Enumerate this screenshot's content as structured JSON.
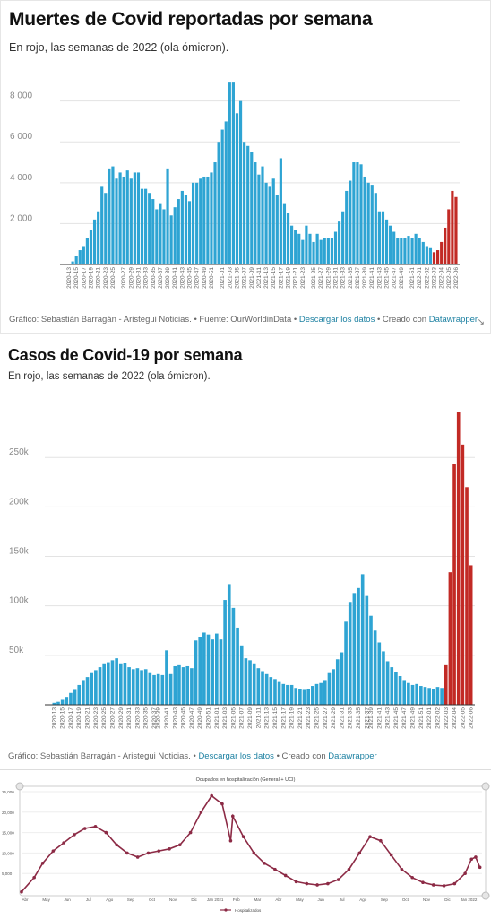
{
  "chart1": {
    "title": "Muertes de Covid reportadas por semana",
    "subtitle": "En rojo, las semanas de 2022 (ola ómicron).",
    "footer": {
      "credit": "Gráfico: Sebastián Barragán - Aristegui Noticias.",
      "source": "• Fuente: OurWorldinData •",
      "download": "Descargar los datos",
      "created": "• Creado con",
      "tool": "Datawrapper"
    }
  },
  "chart2": {
    "title": "Casos de Covid-19 por semana",
    "subtitle": "En rojo, las semanas de 2022 (ola ómicron).",
    "footer": {
      "credit": "Gráfico: Sebastián Barragán - Aristegui Noticias. •",
      "download": "Descargar los datos",
      "created": "• Creado con",
      "tool": "Datawrapper"
    }
  },
  "chart3": {
    "title": "Ocupados en hospitalización (General + UCI)",
    "legend": "Hospitalizados"
  },
  "colors": {
    "blue": "#2ea4d3",
    "red": "#c22a25",
    "maroon": "#8c2a45"
  },
  "chart_data": [
    {
      "type": "bar",
      "title": "Muertes de Covid reportadas por semana",
      "subtitle": "En rojo, las semanas de 2022 (ola ómicron).",
      "yticks": [
        2000,
        4000,
        6000,
        8000
      ],
      "ytick_labels": [
        "2 000",
        "4 000",
        "6 000",
        "8 000"
      ],
      "ylim": [
        0,
        9300
      ],
      "grid": true,
      "highlight_last": 7,
      "values": [
        40,
        150,
        400,
        700,
        900,
        1300,
        1700,
        2200,
        2600,
        3800,
        3500,
        4700,
        4800,
        4200,
        4500,
        4300,
        4600,
        4200,
        4500,
        4500,
        3700,
        3700,
        3500,
        3200,
        2700,
        3000,
        2700,
        4700,
        2400,
        2800,
        3200,
        3600,
        3400,
        3100,
        4000,
        4000,
        4200,
        4300,
        4300,
        4500,
        5000,
        6000,
        6600,
        7000,
        8900,
        8900,
        7400,
        8000,
        6000,
        5800,
        5500,
        5000,
        4400,
        4800,
        4000,
        3800,
        4200,
        3400,
        5200,
        3000,
        2500,
        1900,
        1700,
        1500,
        1200,
        1900,
        1500,
        1100,
        1500,
        1200,
        1300,
        1300,
        1300,
        1600,
        2100,
        2600,
        3600,
        4100,
        5000,
        5000,
        4900,
        4300,
        4000,
        3900,
        3500,
        2600,
        2600,
        2200,
        1900,
        1600,
        1300,
        1300,
        1300,
        1400,
        1300,
        1500,
        1300,
        1100,
        900,
        800,
        600,
        700,
        1100,
        1800,
        2700,
        3600,
        3300
      ],
      "xtick_labels": [
        "2020-13",
        "2020-15",
        "2020-17",
        "2020-19",
        "2020-21",
        "2020-23",
        "2020-25",
        "2020-27",
        "2020-29",
        "2020-31",
        "2020-33",
        "2020-35",
        "2020-37",
        "2020-39",
        "2020-41",
        "2020-43",
        "2020-45",
        "2020-47",
        "2020-49",
        "2020-51",
        "2021-01",
        "2021-03",
        "2021-05",
        "2021-07",
        "2021-09",
        "2021-11",
        "2021-13",
        "2021-15",
        "2021-17",
        "2021-19",
        "2021-21",
        "2021-23",
        "2021-25",
        "2021-27",
        "2021-29",
        "2021-31",
        "2021-33",
        "2021-35",
        "2021-37",
        "2021-39",
        "2021-41",
        "2021-43",
        "2021-45",
        "2021-47",
        "2021-49",
        "2021-51",
        "2022-01",
        "2022-02",
        "2022-03",
        "2022-04",
        "2022-05",
        "2022-06"
      ]
    },
    {
      "type": "bar",
      "title": "Casos de Covid-19 por semana",
      "subtitle": "En rojo, las semanas de 2022 (ola ómicron).",
      "yticks": [
        50000,
        100000,
        150000,
        200000,
        250000
      ],
      "ytick_labels": [
        "50k",
        "100k",
        "150k",
        "200k",
        "250k"
      ],
      "ylim": [
        0,
        310000
      ],
      "grid": true,
      "highlight_last": 7,
      "values": [
        2000,
        3000,
        5000,
        8000,
        12000,
        15000,
        20000,
        25000,
        28000,
        32000,
        35000,
        38000,
        41000,
        43000,
        45000,
        47000,
        41000,
        42000,
        38000,
        36000,
        37000,
        35000,
        36000,
        32000,
        30000,
        31000,
        30000,
        55000,
        31000,
        39000,
        40000,
        38000,
        39000,
        37000,
        65000,
        68000,
        73000,
        71000,
        66000,
        72000,
        66000,
        106000,
        122000,
        98000,
        78000,
        60000,
        47000,
        45000,
        41000,
        37000,
        34000,
        31000,
        28000,
        26000,
        23000,
        21000,
        20000,
        20000,
        17000,
        16000,
        15000,
        16000,
        19000,
        21000,
        22000,
        25000,
        32000,
        36000,
        46000,
        53000,
        84000,
        104000,
        113000,
        118000,
        132000,
        110000,
        90000,
        75000,
        63000,
        54000,
        44000,
        38000,
        33000,
        29000,
        25000,
        22000,
        20000,
        21000,
        19000,
        18000,
        17000,
        16000,
        18000,
        17000,
        40000,
        134000,
        243000,
        296000,
        263000,
        220000,
        141000
      ],
      "xtick_labels": [
        "2020-13",
        "2020-15",
        "2020-17",
        "2020-19",
        "2020-21",
        "2020-23",
        "2020-25",
        "2020-27",
        "2020-29",
        "2020-31",
        "2020-33",
        "2020-35",
        "2020-37",
        "2020-39",
        "2020-41",
        "2020-43",
        "2020-45",
        "2020-47",
        "2020-49",
        "2020-51",
        "2021-01",
        "2021-03",
        "2021-05",
        "2021-07",
        "2021-09",
        "2021-11",
        "2021-13",
        "2021-15",
        "2021-17",
        "2021-19",
        "2021-21",
        "2021-23",
        "2021-25",
        "2021-27",
        "2021-29",
        "2021-31",
        "2021-33",
        "2021-35",
        "2021-37",
        "2021-39",
        "2021-41",
        "2021-43",
        "2021-45",
        "2021-47",
        "2021-49",
        "2021-51",
        "2022-01",
        "2022-02",
        "2022-03",
        "2022-04",
        "2022-05",
        "2022-06"
      ]
    },
    {
      "type": "line",
      "title": "Ocupados en hospitalización (General + UCI)",
      "legend": [
        "Hospitalizados"
      ],
      "yticks": [
        5000,
        10000,
        15000,
        20000,
        25000
      ],
      "ytick_labels": [
        "5,000",
        "10,000",
        "15,000",
        "20,000",
        "25,000"
      ],
      "ylim": [
        0,
        25000
      ],
      "x_labels": [
        "Abr",
        "May",
        "Jun",
        "Jul",
        "Ago",
        "Sep",
        "Oct",
        "Nov",
        "Dic",
        "Jan 2021",
        "Feb",
        "Mar",
        "Abr",
        "May",
        "Jun",
        "Jul",
        "Ago",
        "Sep",
        "Oct",
        "Nov",
        "Dic",
        "Jan 2022"
      ],
      "x": [
        0,
        0.6,
        1,
        1.5,
        2,
        2.5,
        3,
        3.5,
        4,
        4.5,
        5,
        5.5,
        6,
        6.5,
        7,
        7.5,
        8,
        8.5,
        9,
        9.5,
        9.9,
        10,
        10.5,
        11,
        11.5,
        12,
        12.5,
        13,
        13.5,
        14,
        14.5,
        15,
        15.5,
        16,
        16.5,
        17,
        17.5,
        18,
        18.5,
        19,
        19.5,
        20,
        20.5,
        21,
        21.3,
        21.5,
        21.7
      ],
      "values": [
        500,
        4000,
        7500,
        10500,
        12500,
        14500,
        16000,
        16500,
        15000,
        12000,
        10000,
        9000,
        10000,
        10500,
        11000,
        12000,
        15000,
        20000,
        24000,
        22000,
        13000,
        19000,
        14000,
        10000,
        7500,
        6000,
        4500,
        3000,
        2500,
        2200,
        2500,
        3500,
        6000,
        10000,
        14000,
        13000,
        9500,
        6000,
        4000,
        2800,
        2200,
        2000,
        2500,
        5000,
        8500,
        9000,
        6500
      ]
    }
  ]
}
